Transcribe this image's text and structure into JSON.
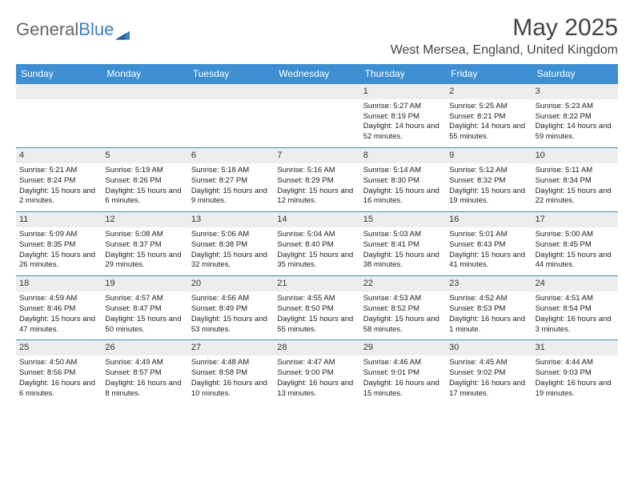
{
  "brand": {
    "part1": "General",
    "part2": "Blue"
  },
  "title": "May 2025",
  "location": "West Mersea, England, United Kingdom",
  "colors": {
    "header_bg": "#3d8fd1",
    "header_text": "#ffffff",
    "stripe_bg": "#eceded",
    "divider": "#3d8fd1",
    "text": "#222222",
    "title_text": "#444444"
  },
  "day_names": [
    "Sunday",
    "Monday",
    "Tuesday",
    "Wednesday",
    "Thursday",
    "Friday",
    "Saturday"
  ],
  "weeks": [
    [
      {
        "n": "",
        "r": "",
        "s": "",
        "d": ""
      },
      {
        "n": "",
        "r": "",
        "s": "",
        "d": ""
      },
      {
        "n": "",
        "r": "",
        "s": "",
        "d": ""
      },
      {
        "n": "",
        "r": "",
        "s": "",
        "d": ""
      },
      {
        "n": "1",
        "r": "Sunrise: 5:27 AM",
        "s": "Sunset: 8:19 PM",
        "d": "Daylight: 14 hours and 52 minutes."
      },
      {
        "n": "2",
        "r": "Sunrise: 5:25 AM",
        "s": "Sunset: 8:21 PM",
        "d": "Daylight: 14 hours and 55 minutes."
      },
      {
        "n": "3",
        "r": "Sunrise: 5:23 AM",
        "s": "Sunset: 8:22 PM",
        "d": "Daylight: 14 hours and 59 minutes."
      }
    ],
    [
      {
        "n": "4",
        "r": "Sunrise: 5:21 AM",
        "s": "Sunset: 8:24 PM",
        "d": "Daylight: 15 hours and 2 minutes."
      },
      {
        "n": "5",
        "r": "Sunrise: 5:19 AM",
        "s": "Sunset: 8:26 PM",
        "d": "Daylight: 15 hours and 6 minutes."
      },
      {
        "n": "6",
        "r": "Sunrise: 5:18 AM",
        "s": "Sunset: 8:27 PM",
        "d": "Daylight: 15 hours and 9 minutes."
      },
      {
        "n": "7",
        "r": "Sunrise: 5:16 AM",
        "s": "Sunset: 8:29 PM",
        "d": "Daylight: 15 hours and 12 minutes."
      },
      {
        "n": "8",
        "r": "Sunrise: 5:14 AM",
        "s": "Sunset: 8:30 PM",
        "d": "Daylight: 15 hours and 16 minutes."
      },
      {
        "n": "9",
        "r": "Sunrise: 5:12 AM",
        "s": "Sunset: 8:32 PM",
        "d": "Daylight: 15 hours and 19 minutes."
      },
      {
        "n": "10",
        "r": "Sunrise: 5:11 AM",
        "s": "Sunset: 8:34 PM",
        "d": "Daylight: 15 hours and 22 minutes."
      }
    ],
    [
      {
        "n": "11",
        "r": "Sunrise: 5:09 AM",
        "s": "Sunset: 8:35 PM",
        "d": "Daylight: 15 hours and 26 minutes."
      },
      {
        "n": "12",
        "r": "Sunrise: 5:08 AM",
        "s": "Sunset: 8:37 PM",
        "d": "Daylight: 15 hours and 29 minutes."
      },
      {
        "n": "13",
        "r": "Sunrise: 5:06 AM",
        "s": "Sunset: 8:38 PM",
        "d": "Daylight: 15 hours and 32 minutes."
      },
      {
        "n": "14",
        "r": "Sunrise: 5:04 AM",
        "s": "Sunset: 8:40 PM",
        "d": "Daylight: 15 hours and 35 minutes."
      },
      {
        "n": "15",
        "r": "Sunrise: 5:03 AM",
        "s": "Sunset: 8:41 PM",
        "d": "Daylight: 15 hours and 38 minutes."
      },
      {
        "n": "16",
        "r": "Sunrise: 5:01 AM",
        "s": "Sunset: 8:43 PM",
        "d": "Daylight: 15 hours and 41 minutes."
      },
      {
        "n": "17",
        "r": "Sunrise: 5:00 AM",
        "s": "Sunset: 8:45 PM",
        "d": "Daylight: 15 hours and 44 minutes."
      }
    ],
    [
      {
        "n": "18",
        "r": "Sunrise: 4:59 AM",
        "s": "Sunset: 8:46 PM",
        "d": "Daylight: 15 hours and 47 minutes."
      },
      {
        "n": "19",
        "r": "Sunrise: 4:57 AM",
        "s": "Sunset: 8:47 PM",
        "d": "Daylight: 15 hours and 50 minutes."
      },
      {
        "n": "20",
        "r": "Sunrise: 4:56 AM",
        "s": "Sunset: 8:49 PM",
        "d": "Daylight: 15 hours and 53 minutes."
      },
      {
        "n": "21",
        "r": "Sunrise: 4:55 AM",
        "s": "Sunset: 8:50 PM",
        "d": "Daylight: 15 hours and 55 minutes."
      },
      {
        "n": "22",
        "r": "Sunrise: 4:53 AM",
        "s": "Sunset: 8:52 PM",
        "d": "Daylight: 15 hours and 58 minutes."
      },
      {
        "n": "23",
        "r": "Sunrise: 4:52 AM",
        "s": "Sunset: 8:53 PM",
        "d": "Daylight: 16 hours and 1 minute."
      },
      {
        "n": "24",
        "r": "Sunrise: 4:51 AM",
        "s": "Sunset: 8:54 PM",
        "d": "Daylight: 16 hours and 3 minutes."
      }
    ],
    [
      {
        "n": "25",
        "r": "Sunrise: 4:50 AM",
        "s": "Sunset: 8:56 PM",
        "d": "Daylight: 16 hours and 6 minutes."
      },
      {
        "n": "26",
        "r": "Sunrise: 4:49 AM",
        "s": "Sunset: 8:57 PM",
        "d": "Daylight: 16 hours and 8 minutes."
      },
      {
        "n": "27",
        "r": "Sunrise: 4:48 AM",
        "s": "Sunset: 8:58 PM",
        "d": "Daylight: 16 hours and 10 minutes."
      },
      {
        "n": "28",
        "r": "Sunrise: 4:47 AM",
        "s": "Sunset: 9:00 PM",
        "d": "Daylight: 16 hours and 13 minutes."
      },
      {
        "n": "29",
        "r": "Sunrise: 4:46 AM",
        "s": "Sunset: 9:01 PM",
        "d": "Daylight: 16 hours and 15 minutes."
      },
      {
        "n": "30",
        "r": "Sunrise: 4:45 AM",
        "s": "Sunset: 9:02 PM",
        "d": "Daylight: 16 hours and 17 minutes."
      },
      {
        "n": "31",
        "r": "Sunrise: 4:44 AM",
        "s": "Sunset: 9:03 PM",
        "d": "Daylight: 16 hours and 19 minutes."
      }
    ]
  ]
}
